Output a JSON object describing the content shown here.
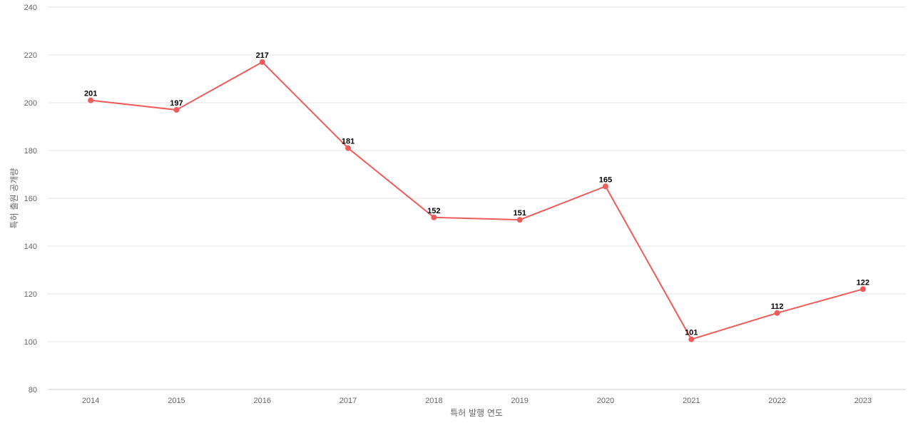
{
  "chart_data": {
    "type": "line",
    "x": [
      "2014",
      "2015",
      "2016",
      "2017",
      "2018",
      "2019",
      "2020",
      "2021",
      "2022",
      "2023"
    ],
    "series": [
      {
        "values": [
          201,
          197,
          217,
          181,
          152,
          151,
          165,
          101,
          112,
          122
        ]
      }
    ],
    "xlabel": "특허 발행 연도",
    "ylabel": "특허 출원 공개량",
    "ylim": [
      80,
      240
    ],
    "yticks": [
      80,
      100,
      120,
      140,
      160,
      180,
      200,
      220,
      240
    ],
    "grid": true,
    "legend": "none",
    "line_color": "#ef5b5b",
    "data_labels": true
  }
}
